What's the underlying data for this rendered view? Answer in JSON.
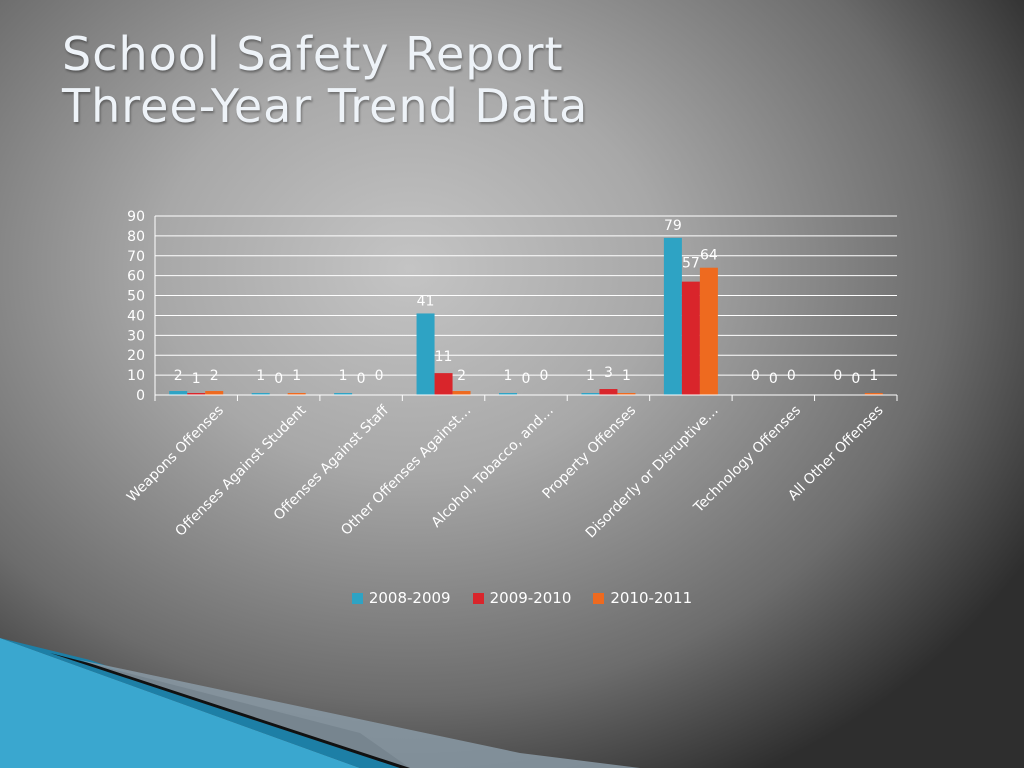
{
  "slide": {
    "title_line1": "School Safety Report",
    "title_line2": "Three-Year Trend Data"
  },
  "chart_data": {
    "type": "bar",
    "categories": [
      "Weapons Offenses",
      "Offenses Against Student",
      "Offenses Against Staff",
      "Other Offenses Against…",
      "Alcohol, Tobacco, and…",
      "Property Offenses",
      "Disorderly or Disruptive…",
      "Technology Offenses",
      "All Other Offenses"
    ],
    "series": [
      {
        "name": "2008-2009",
        "color": "#2ea3c4",
        "values": [
          2,
          1,
          1,
          41,
          1,
          1,
          79,
          0,
          0
        ]
      },
      {
        "name": "2009-2010",
        "color": "#d9252b",
        "values": [
          1,
          0,
          0,
          11,
          0,
          3,
          57,
          0,
          0
        ]
      },
      {
        "name": "2010-2011",
        "color": "#ee6a1f",
        "values": [
          2,
          1,
          0,
          2,
          0,
          1,
          64,
          0,
          1
        ]
      }
    ],
    "ylim": [
      0,
      90
    ],
    "yticks": [
      0,
      10,
      20,
      30,
      40,
      50,
      60,
      70,
      80,
      90
    ],
    "grid": true,
    "legend_position": "bottom",
    "data_labels": true
  }
}
